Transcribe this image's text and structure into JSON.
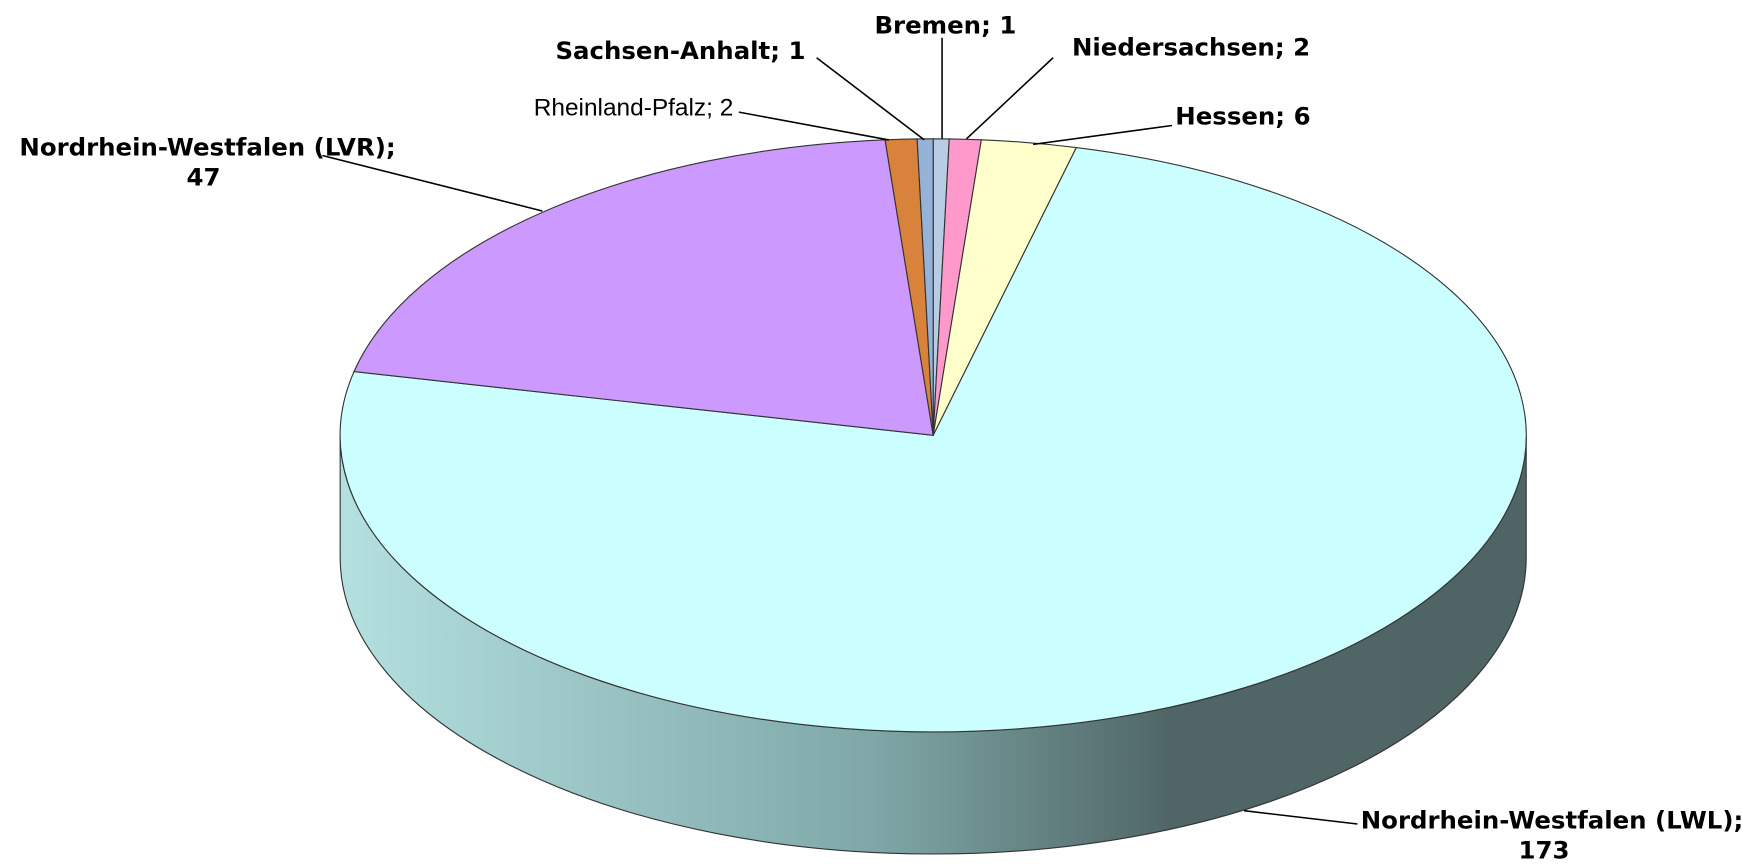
{
  "chart_data": {
    "type": "pie3d",
    "values": [
      1,
      2,
      6,
      173,
      47,
      2,
      1
    ],
    "value_labels": [
      "Bremen; 1",
      "Niedersachsen; 2",
      "Hessen; 6",
      "Nordrhein-Westfalen (LWL);\n173",
      "Nordrhein-Westfalen (LVR);\n47",
      "Rheinland-Pfalz; 2",
      "Sachsen-Anhalt; 1"
    ],
    "colors": [
      "#b8cce4",
      "#ff99cc",
      "#ffffcc",
      "#ccffff",
      "#cc99ff",
      "#d9823b",
      "#95b3d7"
    ]
  }
}
